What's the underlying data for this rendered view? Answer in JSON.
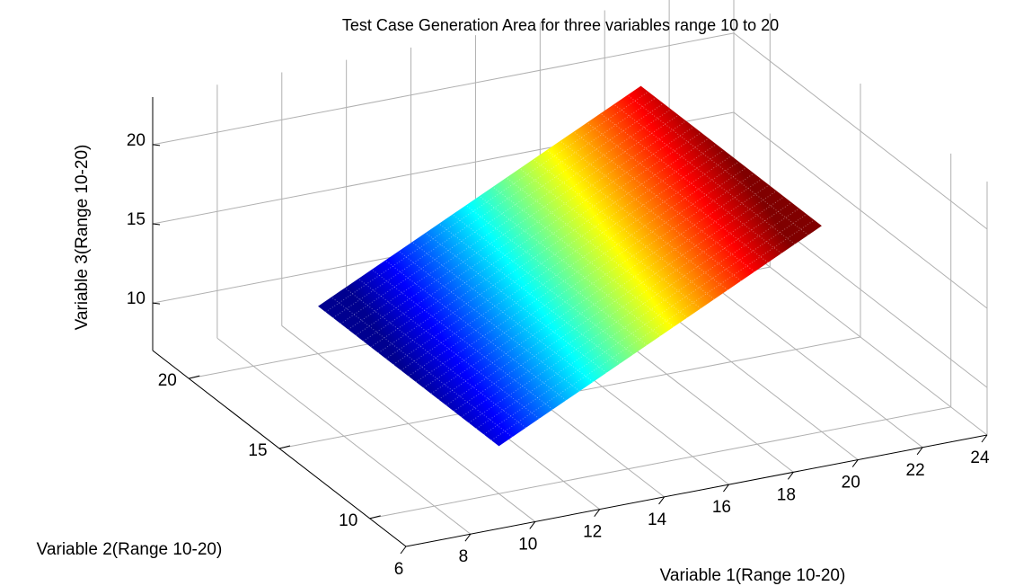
{
  "chart_data": {
    "type": "surface3d",
    "title": "Test Case Generation Area for three variables range 10 to 20",
    "xlabel": "Variable 1(Range 10-20)",
    "ylabel": "Variable 2(Range 10-20)",
    "zlabel": "Variable 3(Range 10-20)",
    "xlim": [
      6,
      24
    ],
    "ylim": [
      8,
      22
    ],
    "zlim": [
      7,
      23
    ],
    "x_ticks": [
      6,
      8,
      10,
      12,
      14,
      16,
      18,
      20,
      22,
      24
    ],
    "x_tick_labels": [
      "6",
      "8",
      "10",
      "12",
      "14",
      "16",
      "18",
      "20",
      "22",
      "24"
    ],
    "y_ticks": [
      10,
      15,
      20
    ],
    "y_tick_labels": [
      "10",
      "15",
      "20"
    ],
    "z_ticks": [
      10,
      15,
      20
    ],
    "z_tick_labels": [
      "10",
      "15",
      "20"
    ],
    "grid": true,
    "colormap": "jet",
    "surface": {
      "x_range": [
        10,
        20
      ],
      "y_range": [
        10,
        20
      ],
      "z_range": [
        10,
        20
      ],
      "z_follows": "x"
    }
  }
}
